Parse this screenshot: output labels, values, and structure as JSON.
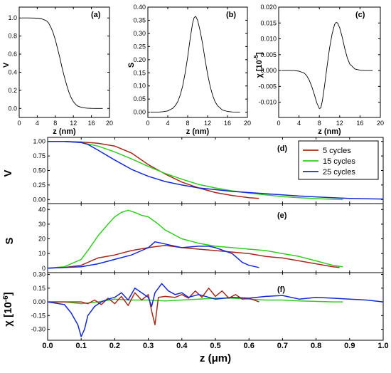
{
  "chart_data": [
    {
      "id": "a",
      "type": "line",
      "panel_label": "(a)",
      "xlabel": "z (nm)",
      "ylabel": "V",
      "xlim": [
        0,
        20
      ],
      "ylim": [
        -0.1,
        1.12
      ],
      "xticks": [
        "0",
        "4",
        "8",
        "12",
        "16",
        "20"
      ],
      "yticks": [
        "0.0",
        "0.2",
        "0.4",
        "0.6",
        "0.8",
        "1.0"
      ],
      "series": [
        {
          "color": "#000000",
          "x": [
            0.5,
            2,
            4,
            5,
            6,
            6.5,
            7,
            7.5,
            8,
            8.5,
            9,
            9.5,
            10,
            10.5,
            11,
            11.5,
            12,
            12.5,
            13,
            14,
            15,
            16,
            17,
            18.5
          ],
          "y": [
            1.0,
            1.0,
            0.998,
            0.99,
            0.97,
            0.945,
            0.9,
            0.84,
            0.76,
            0.66,
            0.56,
            0.45,
            0.35,
            0.26,
            0.18,
            0.12,
            0.075,
            0.045,
            0.025,
            0.008,
            0.003,
            0.001,
            0.0,
            0.0
          ]
        }
      ]
    },
    {
      "id": "b",
      "type": "line",
      "panel_label": "(b)",
      "xlabel": "z (nm)",
      "ylabel": "S",
      "xlim": [
        0,
        20
      ],
      "ylim": [
        -0.02,
        0.4
      ],
      "xticks": [
        "0",
        "4",
        "8",
        "12",
        "16",
        "20"
      ],
      "yticks": [
        "0.00",
        "0.05",
        "0.10",
        "0.15",
        "0.20",
        "0.25",
        "0.30",
        "0.35",
        "0.40"
      ],
      "series": [
        {
          "color": "#000000",
          "x": [
            0.5,
            2,
            3,
            4,
            5,
            5.5,
            6,
            6.5,
            7,
            7.5,
            8,
            8.5,
            9,
            9.3,
            9.6,
            10,
            10.5,
            11,
            11.5,
            12,
            12.5,
            13,
            13.5,
            14,
            15,
            16,
            17,
            18.5
          ],
          "y": [
            0.0,
            0.0,
            0.002,
            0.005,
            0.015,
            0.025,
            0.04,
            0.065,
            0.1,
            0.15,
            0.21,
            0.28,
            0.34,
            0.36,
            0.365,
            0.35,
            0.31,
            0.26,
            0.2,
            0.145,
            0.1,
            0.065,
            0.04,
            0.025,
            0.008,
            0.003,
            0.001,
            0.0
          ]
        }
      ]
    },
    {
      "id": "c",
      "type": "line",
      "panel_label": "(c)",
      "xlabel": "z (nm)",
      "ylabel": "χ [10",
      "ylabel_exp": "-5",
      "ylabel_close": "]",
      "xlim": [
        0,
        20
      ],
      "ylim": [
        -0.0148,
        0.02
      ],
      "xticks": [
        "0",
        "4",
        "8",
        "12",
        "16",
        "20"
      ],
      "yticks": [
        "-0.010",
        "-0.005",
        "0.000",
        "0.005",
        "0.010",
        "0.015",
        "0.020"
      ],
      "series": [
        {
          "color": "#000000",
          "x": [
            0.5,
            2,
            3,
            4,
            5,
            5.5,
            6,
            6.5,
            7,
            7.5,
            8,
            8.3,
            8.6,
            9,
            9.5,
            10,
            10.5,
            11,
            11.3,
            11.6,
            12,
            12.5,
            13,
            13.5,
            14,
            15,
            16,
            17,
            18.5
          ],
          "y": [
            0.0,
            0.0,
            0.0,
            -0.0002,
            -0.0008,
            -0.0016,
            -0.003,
            -0.005,
            -0.0075,
            -0.0102,
            -0.012,
            -0.0118,
            -0.0095,
            -0.005,
            0.001,
            0.007,
            0.0115,
            0.0145,
            0.0152,
            0.015,
            0.0135,
            0.0105,
            0.007,
            0.004,
            0.002,
            0.0005,
            0.0001,
            0.0,
            0.0
          ]
        }
      ]
    },
    {
      "id": "d",
      "type": "line",
      "panel_label": "(d)",
      "ylabel": "V",
      "xlim": [
        0,
        1.0
      ],
      "ylim": [
        -0.07,
        1.07
      ],
      "yticks": [
        "0.00",
        "0.25",
        "0.50",
        "0.75",
        "1.00"
      ],
      "legend_position": "top-right",
      "series": [
        {
          "name": "5 cycles",
          "color": "#a52a1e",
          "x": [
            0,
            0.05,
            0.1,
            0.15,
            0.2,
            0.25,
            0.3,
            0.35,
            0.4,
            0.45,
            0.5,
            0.55,
            0.6,
            0.63
          ],
          "y": [
            1.0,
            1.0,
            0.99,
            0.97,
            0.92,
            0.8,
            0.6,
            0.44,
            0.3,
            0.2,
            0.12,
            0.07,
            0.03,
            0.02
          ]
        },
        {
          "name": "15 cycles",
          "color": "#33cc22",
          "x": [
            0,
            0.05,
            0.1,
            0.15,
            0.2,
            0.25,
            0.3,
            0.35,
            0.4,
            0.45,
            0.5,
            0.55,
            0.6,
            0.65,
            0.7,
            0.75,
            0.8,
            0.85,
            0.88
          ],
          "y": [
            1.0,
            1.0,
            0.98,
            0.92,
            0.82,
            0.7,
            0.57,
            0.45,
            0.35,
            0.26,
            0.2,
            0.15,
            0.11,
            0.08,
            0.05,
            0.03,
            0.015,
            0.005,
            0.0
          ]
        },
        {
          "name": "25 cycles",
          "color": "#1428d0",
          "x": [
            0,
            0.05,
            0.1,
            0.12,
            0.15,
            0.2,
            0.25,
            0.3,
            0.35,
            0.4,
            0.45,
            0.5,
            0.55,
            0.6,
            0.65,
            0.7,
            0.75,
            0.8,
            0.85,
            0.9,
            0.95,
            1.0
          ],
          "y": [
            1.0,
            1.0,
            0.98,
            0.95,
            0.85,
            0.68,
            0.52,
            0.4,
            0.31,
            0.25,
            0.2,
            0.17,
            0.14,
            0.12,
            0.1,
            0.08,
            0.06,
            0.045,
            0.03,
            0.02,
            0.012,
            0.008
          ]
        }
      ]
    },
    {
      "id": "e",
      "type": "line",
      "panel_label": "(e)",
      "ylabel": "S",
      "xlim": [
        0,
        1.0
      ],
      "ylim": [
        -3,
        44
      ],
      "yticks": [
        "0",
        "10",
        "20",
        "30",
        "40"
      ],
      "series": [
        {
          "name": "5 cycles",
          "color": "#a52a1e",
          "x": [
            0,
            0.05,
            0.1,
            0.15,
            0.2,
            0.25,
            0.3,
            0.35,
            0.4,
            0.45,
            0.5,
            0.55,
            0.6,
            0.65,
            0.7,
            0.75,
            0.8,
            0.85,
            0.87
          ],
          "y": [
            0,
            0.5,
            2,
            7,
            9,
            12,
            14,
            15.5,
            14,
            13,
            12,
            11,
            10,
            8,
            7,
            5,
            3,
            1,
            0.5
          ]
        },
        {
          "name": "15 cycles",
          "color": "#33cc22",
          "x": [
            0,
            0.05,
            0.1,
            0.12,
            0.15,
            0.18,
            0.2,
            0.22,
            0.24,
            0.26,
            0.28,
            0.3,
            0.33,
            0.35,
            0.4,
            0.45,
            0.5,
            0.55,
            0.6,
            0.65,
            0.7,
            0.75,
            0.8,
            0.85,
            0.88
          ],
          "y": [
            0,
            1,
            6,
            12,
            22,
            30,
            35,
            38,
            39.5,
            38,
            36,
            35,
            30,
            26,
            20,
            17,
            15,
            14,
            13,
            12,
            10,
            8,
            5,
            2,
            1
          ]
        },
        {
          "name": "25 cycles",
          "color": "#1428d0",
          "x": [
            0,
            0.05,
            0.1,
            0.15,
            0.2,
            0.25,
            0.28,
            0.3,
            0.32,
            0.34,
            0.36,
            0.4,
            0.45,
            0.48,
            0.5,
            0.55,
            0.58,
            0.6,
            0.63
          ],
          "y": [
            0,
            0.5,
            1,
            3,
            6,
            9,
            12,
            14,
            18,
            17,
            16,
            14,
            15,
            15,
            14,
            10,
            4,
            2,
            0.5
          ]
        }
      ]
    },
    {
      "id": "f",
      "type": "line",
      "panel_label": "(f)",
      "ylabel": "χ [10",
      "ylabel_exp": "-6",
      "ylabel_close": "]",
      "xlabel": "z (μm)",
      "xlim": [
        0,
        1.0
      ],
      "ylim": [
        -0.42,
        0.32
      ],
      "yticks": [
        "-0.30",
        "-0.15",
        "0.00",
        "0.15",
        "0.30"
      ],
      "xticks": [
        "0.0",
        "0.1",
        "0.2",
        "0.3",
        "0.4",
        "0.5",
        "0.6",
        "0.7",
        "0.8",
        "0.9",
        "1.0"
      ],
      "series": [
        {
          "name": "15 cycles",
          "color": "#33cc22",
          "x": [
            0,
            0.05,
            0.1,
            0.15,
            0.2,
            0.25,
            0.3,
            0.35,
            0.4,
            0.45,
            0.5,
            0.55,
            0.6,
            0.65,
            0.7,
            0.75,
            0.8,
            0.85,
            0.88
          ],
          "y": [
            0,
            0.0,
            -0.02,
            0.0,
            0.03,
            0.02,
            0.02,
            0.01,
            0.02,
            0.03,
            0.04,
            0.04,
            0.03,
            0.02,
            0.02,
            0.01,
            0.005,
            0.0,
            0.0
          ]
        },
        {
          "name": "5 cycles",
          "color": "#a52a1e",
          "x": [
            0,
            0.05,
            0.1,
            0.12,
            0.14,
            0.16,
            0.18,
            0.2,
            0.22,
            0.24,
            0.26,
            0.28,
            0.3,
            0.31,
            0.32,
            0.33,
            0.35,
            0.38,
            0.4,
            0.42,
            0.44,
            0.46,
            0.48,
            0.5,
            0.52,
            0.54,
            0.56,
            0.58,
            0.6,
            0.63
          ],
          "y": [
            0,
            0,
            0.0,
            -0.02,
            0.02,
            -0.03,
            0.04,
            -0.02,
            0.06,
            -0.04,
            0.1,
            0.02,
            0.08,
            -0.1,
            -0.25,
            0.05,
            0.06,
            0.05,
            0.08,
            0.04,
            0.12,
            0.05,
            0.15,
            0.06,
            0.12,
            0.04,
            0.08,
            0.03,
            0.04,
            0.0
          ]
        },
        {
          "name": "25 cycles",
          "color": "#1428d0",
          "x": [
            0,
            0.05,
            0.07,
            0.09,
            0.1,
            0.11,
            0.12,
            0.14,
            0.16,
            0.18,
            0.2,
            0.22,
            0.24,
            0.26,
            0.28,
            0.3,
            0.31,
            0.32,
            0.34,
            0.36,
            0.38,
            0.4,
            0.42,
            0.45,
            0.5,
            0.55,
            0.6,
            0.65,
            0.7,
            0.75,
            0.8,
            0.85,
            0.9,
            0.95,
            1.0
          ],
          "y": [
            0,
            -0.03,
            -0.12,
            -0.25,
            -0.38,
            -0.3,
            -0.15,
            -0.05,
            0.0,
            0.03,
            0.05,
            0.1,
            0.02,
            0.15,
            0.1,
            0.05,
            -0.05,
            0.1,
            0.2,
            0.12,
            0.08,
            0.1,
            0.05,
            0.08,
            0.03,
            0.05,
            0.04,
            0.06,
            0.07,
            0.03,
            0.05,
            0.04,
            0.03,
            0.02,
            0.0
          ]
        }
      ]
    }
  ]
}
